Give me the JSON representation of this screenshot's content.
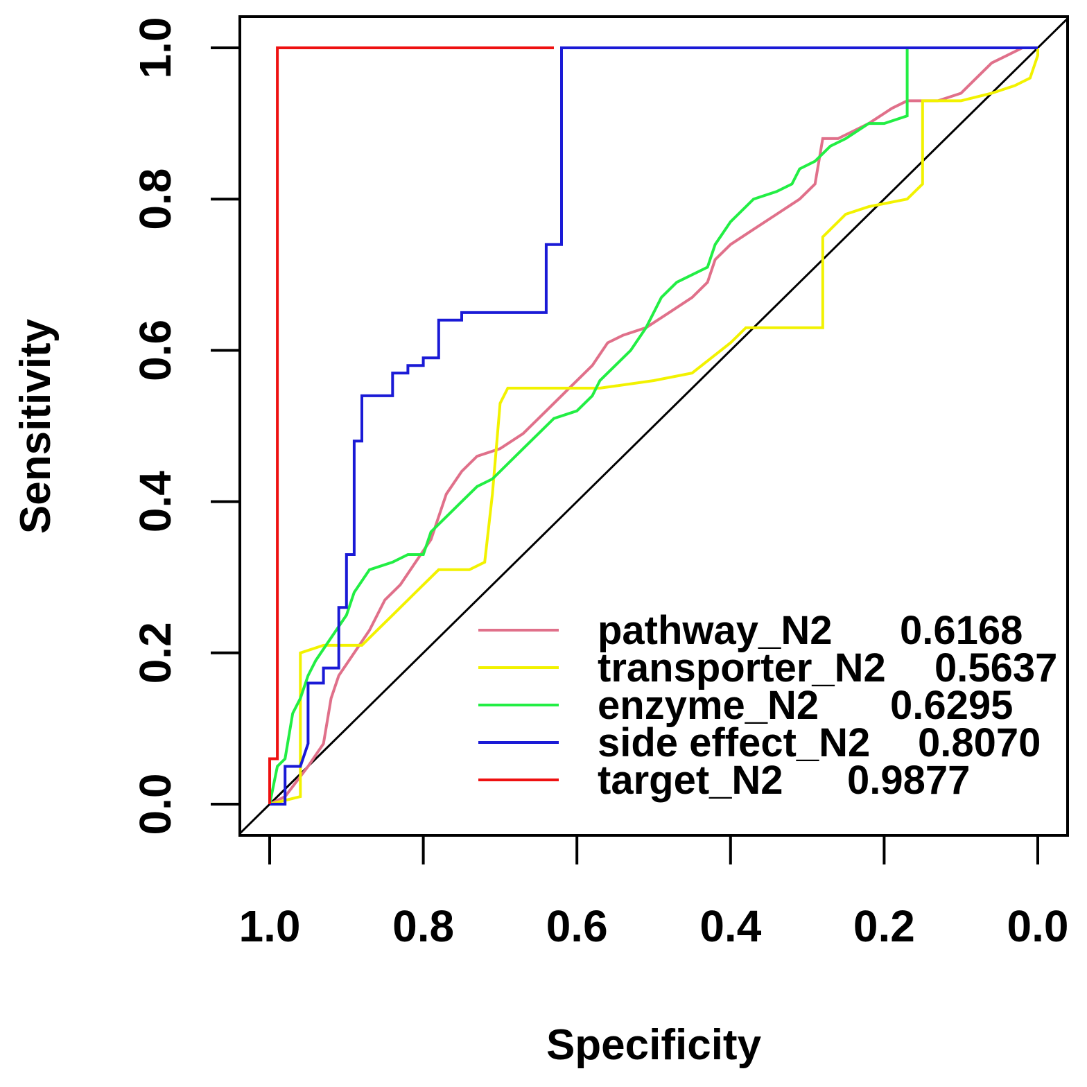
{
  "chart_data": {
    "type": "line",
    "title": "",
    "xlabel": "Specificity",
    "ylabel": "Sensitivity",
    "xlim": [
      1.0,
      0.0
    ],
    "ylim": [
      0.0,
      1.0
    ],
    "x_reversed": true,
    "x_ticks": [
      "1.0",
      "0.8",
      "0.6",
      "0.4",
      "0.2",
      "0.0"
    ],
    "y_ticks": [
      "0.0",
      "0.2",
      "0.4",
      "0.6",
      "0.8",
      "1.0"
    ],
    "grid": false,
    "legend_position": "bottom-right",
    "reference_line": {
      "name": "chance diagonal",
      "color": "#000000",
      "from": [
        1.0,
        0.0
      ],
      "to": [
        0.0,
        1.0
      ]
    },
    "series": [
      {
        "name": "pathway_N2",
        "auc": "0.6168",
        "color": "#e0708a",
        "points": [
          [
            1.0,
            0.0
          ],
          [
            0.98,
            0.01
          ],
          [
            0.95,
            0.05
          ],
          [
            0.93,
            0.08
          ],
          [
            0.92,
            0.14
          ],
          [
            0.91,
            0.17
          ],
          [
            0.89,
            0.2
          ],
          [
            0.87,
            0.23
          ],
          [
            0.85,
            0.27
          ],
          [
            0.83,
            0.29
          ],
          [
            0.81,
            0.32
          ],
          [
            0.79,
            0.35
          ],
          [
            0.77,
            0.41
          ],
          [
            0.75,
            0.44
          ],
          [
            0.73,
            0.46
          ],
          [
            0.7,
            0.47
          ],
          [
            0.67,
            0.49
          ],
          [
            0.64,
            0.52
          ],
          [
            0.61,
            0.55
          ],
          [
            0.58,
            0.58
          ],
          [
            0.56,
            0.61
          ],
          [
            0.54,
            0.62
          ],
          [
            0.51,
            0.63
          ],
          [
            0.48,
            0.65
          ],
          [
            0.45,
            0.67
          ],
          [
            0.43,
            0.69
          ],
          [
            0.42,
            0.72
          ],
          [
            0.4,
            0.74
          ],
          [
            0.37,
            0.76
          ],
          [
            0.34,
            0.78
          ],
          [
            0.31,
            0.8
          ],
          [
            0.29,
            0.82
          ],
          [
            0.28,
            0.88
          ],
          [
            0.26,
            0.88
          ],
          [
            0.24,
            0.89
          ],
          [
            0.22,
            0.9
          ],
          [
            0.19,
            0.92
          ],
          [
            0.17,
            0.93
          ],
          [
            0.13,
            0.93
          ],
          [
            0.1,
            0.94
          ],
          [
            0.08,
            0.96
          ],
          [
            0.06,
            0.98
          ],
          [
            0.04,
            0.99
          ],
          [
            0.02,
            1.0
          ],
          [
            0.0,
            1.0
          ]
        ]
      },
      {
        "name": "transporter_N2",
        "auc": "0.5637",
        "color": "#f2f200",
        "points": [
          [
            1.0,
            0.0
          ],
          [
            0.96,
            0.01
          ],
          [
            0.96,
            0.2
          ],
          [
            0.93,
            0.21
          ],
          [
            0.88,
            0.21
          ],
          [
            0.86,
            0.23
          ],
          [
            0.84,
            0.25
          ],
          [
            0.81,
            0.28
          ],
          [
            0.78,
            0.31
          ],
          [
            0.74,
            0.31
          ],
          [
            0.72,
            0.32
          ],
          [
            0.71,
            0.41
          ],
          [
            0.7,
            0.53
          ],
          [
            0.69,
            0.55
          ],
          [
            0.64,
            0.55
          ],
          [
            0.57,
            0.55
          ],
          [
            0.5,
            0.56
          ],
          [
            0.45,
            0.57
          ],
          [
            0.4,
            0.61
          ],
          [
            0.38,
            0.63
          ],
          [
            0.33,
            0.63
          ],
          [
            0.28,
            0.63
          ],
          [
            0.28,
            0.75
          ],
          [
            0.25,
            0.78
          ],
          [
            0.22,
            0.79
          ],
          [
            0.17,
            0.8
          ],
          [
            0.15,
            0.82
          ],
          [
            0.15,
            0.93
          ],
          [
            0.1,
            0.93
          ],
          [
            0.06,
            0.94
          ],
          [
            0.03,
            0.95
          ],
          [
            0.01,
            0.96
          ],
          [
            0.0,
            0.99
          ],
          [
            0.0,
            1.0
          ]
        ]
      },
      {
        "name": "enzyme_N2",
        "auc": "0.6295",
        "color": "#22ee44",
        "points": [
          [
            1.0,
            0.0
          ],
          [
            0.99,
            0.05
          ],
          [
            0.98,
            0.06
          ],
          [
            0.97,
            0.12
          ],
          [
            0.96,
            0.14
          ],
          [
            0.95,
            0.17
          ],
          [
            0.94,
            0.19
          ],
          [
            0.92,
            0.22
          ],
          [
            0.9,
            0.25
          ],
          [
            0.89,
            0.28
          ],
          [
            0.87,
            0.31
          ],
          [
            0.84,
            0.32
          ],
          [
            0.82,
            0.33
          ],
          [
            0.8,
            0.33
          ],
          [
            0.79,
            0.36
          ],
          [
            0.77,
            0.38
          ],
          [
            0.75,
            0.4
          ],
          [
            0.73,
            0.42
          ],
          [
            0.71,
            0.43
          ],
          [
            0.69,
            0.45
          ],
          [
            0.67,
            0.47
          ],
          [
            0.65,
            0.49
          ],
          [
            0.63,
            0.51
          ],
          [
            0.6,
            0.52
          ],
          [
            0.58,
            0.54
          ],
          [
            0.57,
            0.56
          ],
          [
            0.55,
            0.58
          ],
          [
            0.53,
            0.6
          ],
          [
            0.51,
            0.63
          ],
          [
            0.49,
            0.67
          ],
          [
            0.47,
            0.69
          ],
          [
            0.45,
            0.7
          ],
          [
            0.43,
            0.71
          ],
          [
            0.42,
            0.74
          ],
          [
            0.4,
            0.77
          ],
          [
            0.37,
            0.8
          ],
          [
            0.34,
            0.81
          ],
          [
            0.32,
            0.82
          ],
          [
            0.31,
            0.84
          ],
          [
            0.29,
            0.85
          ],
          [
            0.27,
            0.87
          ],
          [
            0.25,
            0.88
          ],
          [
            0.22,
            0.9
          ],
          [
            0.2,
            0.9
          ],
          [
            0.17,
            0.91
          ],
          [
            0.17,
            1.0
          ],
          [
            0.0,
            1.0
          ]
        ]
      },
      {
        "name": "side effect_N2",
        "auc": "0.8070",
        "color": "#1a1ad6",
        "points": [
          [
            1.0,
            0.0
          ],
          [
            0.98,
            0.0
          ],
          [
            0.98,
            0.05
          ],
          [
            0.96,
            0.05
          ],
          [
            0.95,
            0.08
          ],
          [
            0.95,
            0.16
          ],
          [
            0.93,
            0.16
          ],
          [
            0.93,
            0.18
          ],
          [
            0.91,
            0.18
          ],
          [
            0.91,
            0.26
          ],
          [
            0.9,
            0.26
          ],
          [
            0.9,
            0.33
          ],
          [
            0.89,
            0.33
          ],
          [
            0.89,
            0.48
          ],
          [
            0.88,
            0.48
          ],
          [
            0.88,
            0.54
          ],
          [
            0.86,
            0.54
          ],
          [
            0.84,
            0.54
          ],
          [
            0.84,
            0.57
          ],
          [
            0.82,
            0.57
          ],
          [
            0.82,
            0.58
          ],
          [
            0.8,
            0.58
          ],
          [
            0.8,
            0.59
          ],
          [
            0.78,
            0.59
          ],
          [
            0.78,
            0.64
          ],
          [
            0.77,
            0.64
          ],
          [
            0.75,
            0.64
          ],
          [
            0.75,
            0.65
          ],
          [
            0.69,
            0.65
          ],
          [
            0.64,
            0.65
          ],
          [
            0.64,
            0.74
          ],
          [
            0.62,
            0.74
          ],
          [
            0.62,
            1.0
          ],
          [
            0.0,
            1.0
          ]
        ]
      },
      {
        "name": "target_N2",
        "auc": "0.9877",
        "color": "#ee1111",
        "points": [
          [
            1.0,
            0.0
          ],
          [
            1.0,
            0.06
          ],
          [
            0.99,
            0.06
          ],
          [
            0.99,
            0.19
          ],
          [
            0.99,
            0.19
          ],
          [
            0.99,
            1.0
          ],
          [
            0.63,
            1.0
          ]
        ]
      }
    ]
  }
}
